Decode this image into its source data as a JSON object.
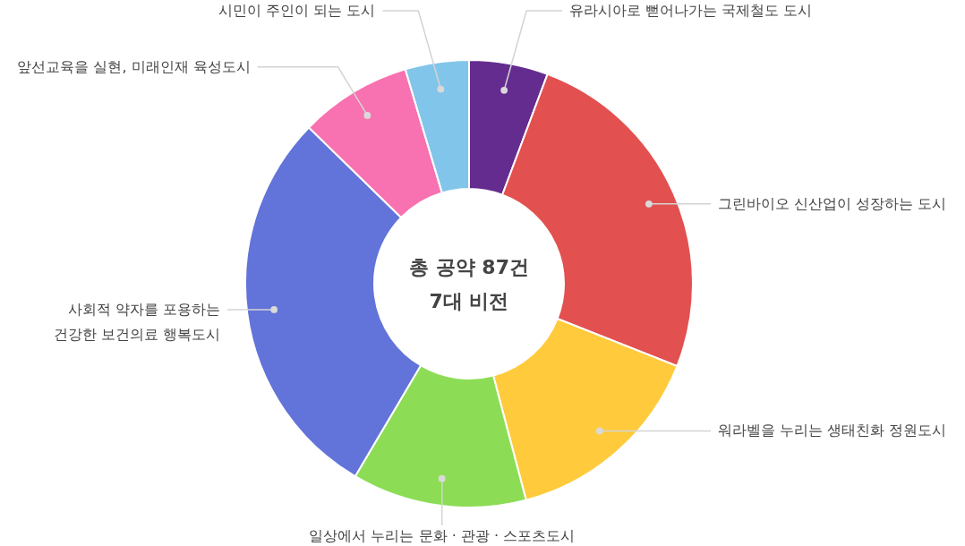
{
  "chart_data": {
    "type": "donut",
    "title": "총 공약 87건",
    "subtitle": "7대 비전",
    "categories": [
      "유라시아로 뻗어나가는 국제철도 도시",
      "그린바이오 신산업이 성장하는 도시",
      "워라벨을 누리는 생태친화 정원도시",
      "일상에서 누리는 문화 · 관광 · 스포츠도시",
      "사회적 약자를 포용하는\n건강한 보건의료 행복도시",
      "앞선교육을 실현, 미래인재 육성도시",
      "시민이 주인이 되는 도시"
    ],
    "values": [
      5.7,
      25.3,
      14.9,
      12.6,
      28.8,
      8.1,
      4.6
    ],
    "colors": [
      "#652c90",
      "#e25050",
      "#ffcb3c",
      "#8cdd55",
      "#6273d9",
      "#f871b0",
      "#82c5ea"
    ]
  }
}
